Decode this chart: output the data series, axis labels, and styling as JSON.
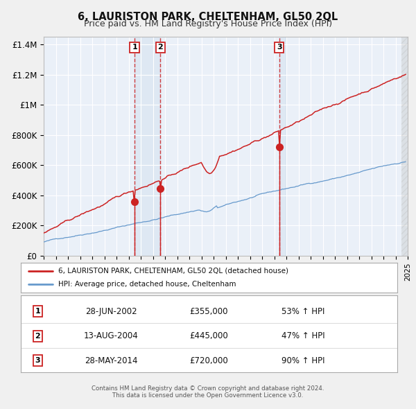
{
  "title": "6, LAURISTON PARK, CHELTENHAM, GL50 2QL",
  "subtitle": "Price paid vs. HM Land Registry's House Price Index (HPI)",
  "hpi_color": "#6699cc",
  "price_color": "#cc2222",
  "ylim": [
    0,
    1450000
  ],
  "xlim_start": 1995,
  "xlim_end": 2025,
  "yticks": [
    0,
    200000,
    400000,
    600000,
    800000,
    1000000,
    1200000,
    1400000
  ],
  "ytick_labels": [
    "£0",
    "£200K",
    "£400K",
    "£600K",
    "£800K",
    "£1M",
    "£1.2M",
    "£1.4M"
  ],
  "transactions": [
    {
      "label": "1",
      "date_num": 2002.49,
      "price": 355000,
      "pct": "53%",
      "date_str": "28-JUN-2002",
      "price_str": "£355,000"
    },
    {
      "label": "2",
      "date_num": 2004.62,
      "price": 445000,
      "pct": "47%",
      "date_str": "13-AUG-2004",
      "price_str": "£445,000"
    },
    {
      "label": "3",
      "date_num": 2014.41,
      "price": 720000,
      "pct": "90%",
      "date_str": "28-MAY-2014",
      "price_str": "£720,000"
    }
  ],
  "legend_line1": "6, LAURISTON PARK, CHELTENHAM, GL50 2QL (detached house)",
  "legend_line2": "HPI: Average price, detached house, Cheltenham",
  "footer1": "Contains HM Land Registry data © Crown copyright and database right 2024.",
  "footer2": "This data is licensed under the Open Government Licence v3.0.",
  "hatch_region_start": 2024.5,
  "hatch_region_end": 2025.5
}
